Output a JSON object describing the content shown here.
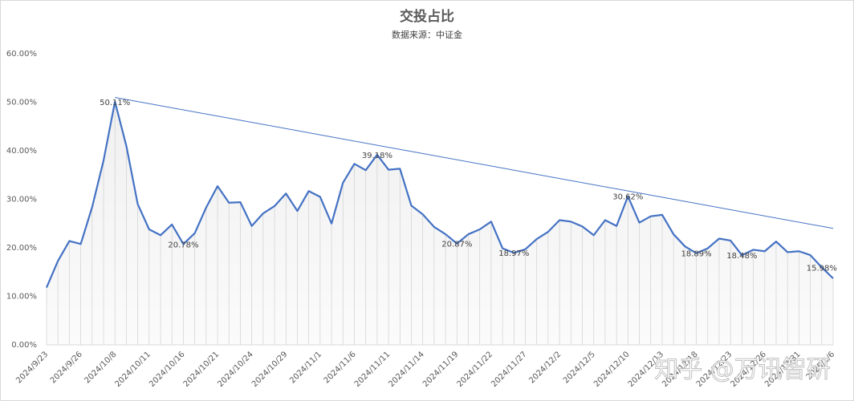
{
  "chart_data": {
    "type": "line",
    "title": "交投占比",
    "subtitle": "数据来源：中证金",
    "watermark": "知乎 @万讯智研",
    "categories": [
      "2024/9/23",
      null,
      null,
      "2024/9/26",
      null,
      null,
      "2024/10/8",
      null,
      null,
      "2024/10/11",
      null,
      null,
      "2024/10/16",
      null,
      null,
      "2024/10/21",
      null,
      null,
      "2024/10/24",
      null,
      null,
      "2024/10/29",
      null,
      null,
      "2024/11/1",
      null,
      null,
      "2024/11/6",
      null,
      null,
      "2024/11/11",
      null,
      null,
      "2024/11/14",
      null,
      null,
      "2024/11/19",
      null,
      null,
      "2024/11/22",
      null,
      null,
      "2024/11/27",
      null,
      null,
      "2024/12/2",
      null,
      null,
      "2024/12/5",
      null,
      null,
      "2024/12/10",
      null,
      null,
      "2024/12/13",
      null,
      null,
      "2024/12/18",
      null,
      null,
      "2024/12/23",
      null,
      null,
      "2024/12/26",
      null,
      null,
      "2024/12/31",
      null,
      null,
      "2025/1/6"
    ],
    "values": [
      11.8,
      17.3,
      21.4,
      20.8,
      28.4,
      38.0,
      50.11,
      41.0,
      29.0,
      23.8,
      22.6,
      24.8,
      20.78,
      23.0,
      28.3,
      32.7,
      29.3,
      29.4,
      24.5,
      27.1,
      28.6,
      31.2,
      27.6,
      31.7,
      30.5,
      25.0,
      33.4,
      37.3,
      36.0,
      39.18,
      36.1,
      36.3,
      28.7,
      26.9,
      24.3,
      22.8,
      20.87,
      22.8,
      23.8,
      25.4,
      19.9,
      18.97,
      19.7,
      21.8,
      23.3,
      25.7,
      25.4,
      24.4,
      22.6,
      25.7,
      24.5,
      30.62,
      25.2,
      26.5,
      26.8,
      22.8,
      20.3,
      18.89,
      19.9,
      21.9,
      21.5,
      18.48,
      19.6,
      19.3,
      21.3,
      19.1,
      19.3,
      18.5,
      15.98,
      13.7
    ],
    "value_labels": [
      null,
      null,
      null,
      null,
      null,
      null,
      "50.11%",
      null,
      null,
      null,
      null,
      null,
      "20.78%",
      null,
      null,
      null,
      null,
      null,
      null,
      null,
      null,
      null,
      null,
      null,
      null,
      null,
      null,
      null,
      null,
      "39.18%",
      null,
      null,
      null,
      null,
      null,
      null,
      "20.87%",
      null,
      null,
      null,
      null,
      "18.97%",
      null,
      null,
      null,
      null,
      null,
      null,
      null,
      null,
      null,
      "30.62%",
      null,
      null,
      null,
      null,
      null,
      "18.89%",
      null,
      null,
      null,
      "18.48%",
      null,
      null,
      null,
      null,
      null,
      null,
      "15.98%",
      null
    ],
    "color": "#4472c4",
    "trendline": {
      "x": [
        6,
        69
      ],
      "values": [
        51.0,
        24.0
      ]
    },
    "ylim": [
      0,
      60
    ],
    "yticks": [
      {
        "value": 0,
        "label": "0.00%"
      },
      {
        "value": 10,
        "label": "10.00%"
      },
      {
        "value": 20,
        "label": "20.00%"
      },
      {
        "value": 30,
        "label": "30.00%"
      },
      {
        "value": 40,
        "label": "40.00%"
      },
      {
        "value": 50,
        "label": "50.00%"
      },
      {
        "value": 60,
        "label": "60.00%"
      }
    ]
  }
}
